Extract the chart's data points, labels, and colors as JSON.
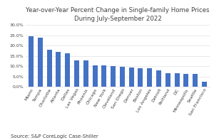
{
  "title": "Year-over-Year Percent Change in Single-family Home Prices\nDuring July-September 2022",
  "source": "Source: S&P CoreLogic Case-Shiller",
  "labels": [
    "Miami",
    "Tampa",
    "Charlotte",
    "Atlanta",
    "Dallas",
    "Las Vegas",
    "Phoenix",
    "Chicago",
    "New York",
    "Cleveland",
    "San Diego",
    "Denver",
    "Boston",
    "Los Angeles",
    "Detroit",
    "Portland",
    "DC",
    "Minneapolis",
    "Seattle",
    "San Francisco"
  ],
  "values": [
    24.6,
    23.8,
    18.1,
    17.1,
    16.3,
    13.0,
    12.9,
    10.6,
    10.6,
    10.0,
    9.8,
    9.3,
    8.9,
    8.9,
    7.9,
    6.6,
    6.5,
    6.4,
    6.2,
    2.3
  ],
  "bar_color": "#4472C4",
  "ylim": [
    0,
    30
  ],
  "yticks": [
    0,
    5.0,
    10.0,
    15.0,
    20.0,
    25.0,
    30.0
  ],
  "background_color": "#FFFFFF",
  "grid_color": "#E0E0E0",
  "title_fontsize": 6.2,
  "tick_fontsize": 4.5,
  "source_fontsize": 5.0,
  "label_color": "#404040"
}
